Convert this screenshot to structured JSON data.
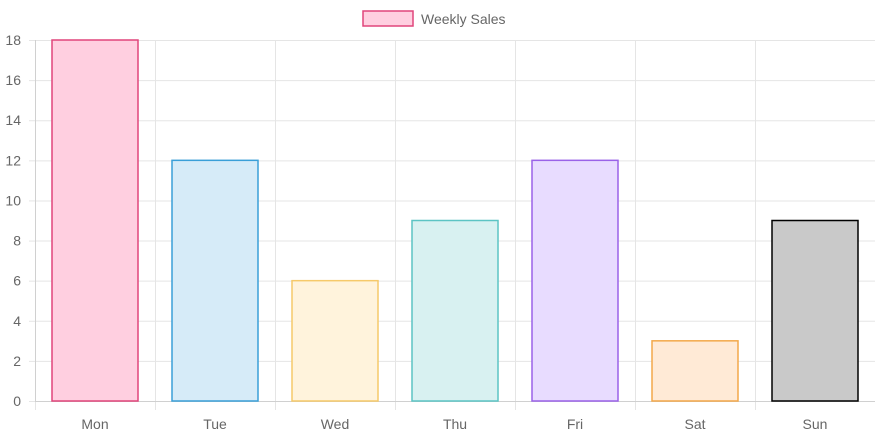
{
  "chart_data": {
    "type": "bar",
    "title": "",
    "xlabel": "",
    "ylabel": "",
    "categories": [
      "Mon",
      "Tue",
      "Wed",
      "Thu",
      "Fri",
      "Sat",
      "Sun"
    ],
    "series": [
      {
        "name": "Weekly Sales",
        "values": [
          18,
          12,
          6,
          9,
          12,
          3,
          9
        ],
        "fill_colors": [
          "#ffcfe0",
          "#d6ebf8",
          "#fff3dc",
          "#d8f1f1",
          "#e8dcff",
          "#ffead6",
          "#c9c9c9"
        ],
        "border_colors": [
          "#e0457b",
          "#3a9fd8",
          "#f6c96a",
          "#5cc4c4",
          "#9a62e8",
          "#f3a84a",
          "#000000"
        ]
      }
    ],
    "ylim": [
      0,
      18
    ],
    "yticks": [
      0,
      2,
      4,
      6,
      8,
      10,
      12,
      14,
      16,
      18
    ],
    "grid": true,
    "legend": {
      "position": "top-center",
      "fill_color": "#ffcfe0",
      "border_color": "#e0457b"
    }
  }
}
